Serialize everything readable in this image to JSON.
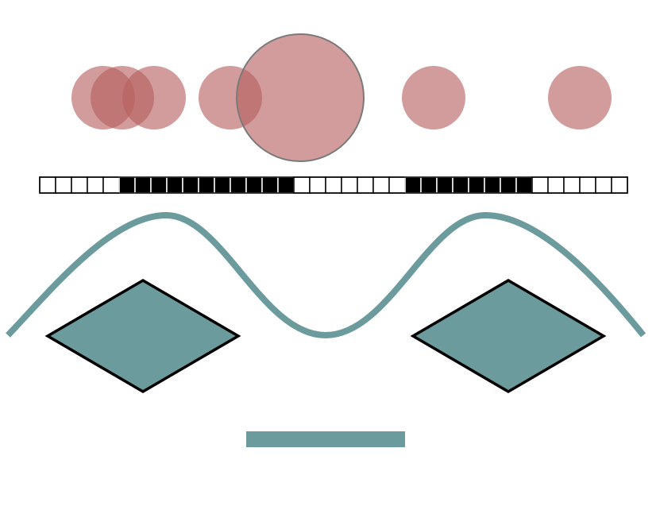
{
  "figure": {
    "circle_color": "#b65f5f",
    "teal_color": "#6b9b9c",
    "outline_color": "#000000",
    "large_circle_stroke": "#7a7a7a",
    "cell_pattern": [
      "white",
      "white",
      "white",
      "white",
      "white",
      "black",
      "black",
      "black",
      "black",
      "black",
      "black",
      "black",
      "black",
      "black",
      "black",
      "black",
      "white",
      "white",
      "white",
      "white",
      "white",
      "white",
      "white",
      "black",
      "black",
      "black",
      "black",
      "black",
      "black",
      "black",
      "black",
      "white",
      "white",
      "white",
      "white",
      "white",
      "white"
    ]
  }
}
